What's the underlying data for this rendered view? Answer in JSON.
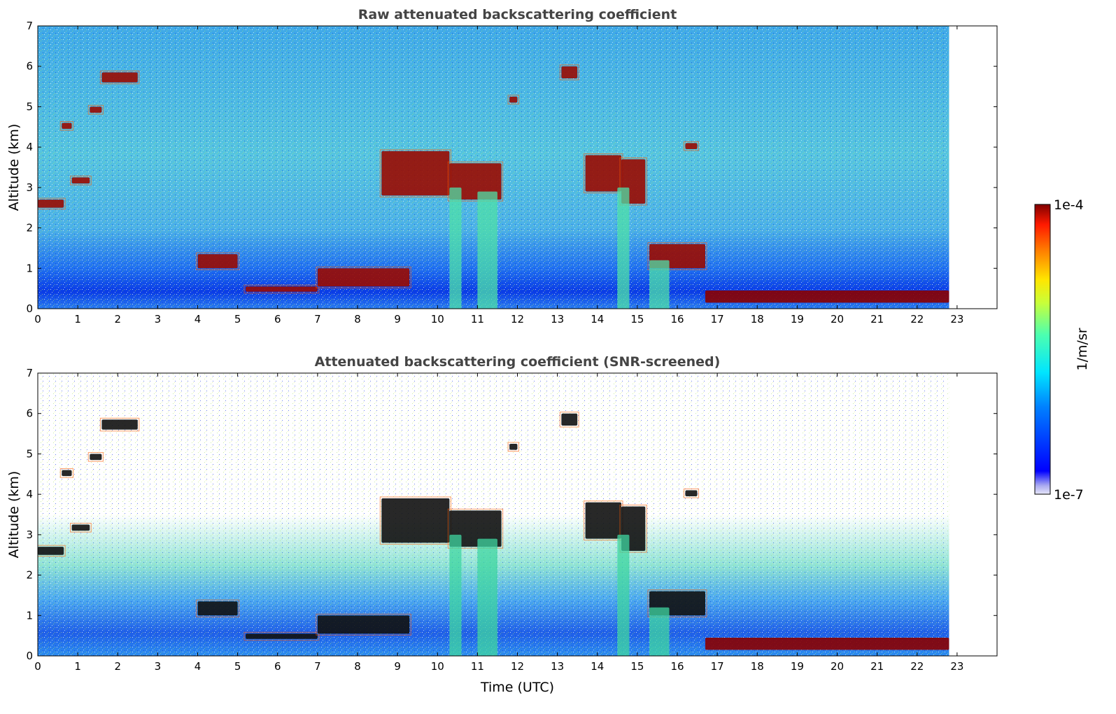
{
  "chart_data": [
    {
      "type": "heatmap",
      "title": "Raw attenuated backscattering coefficient",
      "xlabel": "",
      "ylabel": "Altitude (km)",
      "xlim": [
        0,
        24
      ],
      "ylim": [
        0,
        7
      ],
      "x_ticks": [
        0,
        1,
        2,
        3,
        4,
        5,
        6,
        7,
        8,
        9,
        10,
        11,
        12,
        13,
        14,
        15,
        16,
        17,
        18,
        19,
        20,
        21,
        22,
        23
      ],
      "y_ticks": [
        0,
        1,
        2,
        3,
        4,
        5,
        6,
        7
      ],
      "data_extent_x": [
        0,
        22.8
      ],
      "screened": false,
      "features": [
        {
          "kind": "cloud",
          "x": [
            0.0,
            0.65
          ],
          "y": [
            2.5,
            2.7
          ]
        },
        {
          "kind": "cloud",
          "x": [
            0.6,
            0.85
          ],
          "y": [
            4.45,
            4.6
          ]
        },
        {
          "kind": "cloud",
          "x": [
            0.85,
            1.3
          ],
          "y": [
            3.1,
            3.25
          ]
        },
        {
          "kind": "cloud",
          "x": [
            1.3,
            1.6
          ],
          "y": [
            4.85,
            5.0
          ]
        },
        {
          "kind": "cloud",
          "x": [
            1.6,
            2.5
          ],
          "y": [
            5.6,
            5.85
          ]
        },
        {
          "kind": "cloud",
          "x": [
            4.0,
            5.0
          ],
          "y": [
            1.0,
            1.35
          ]
        },
        {
          "kind": "cloud",
          "x": [
            5.2,
            7.0
          ],
          "y": [
            0.42,
            0.55
          ]
        },
        {
          "kind": "cloud",
          "x": [
            7.0,
            9.3
          ],
          "y": [
            0.55,
            1.0
          ]
        },
        {
          "kind": "cloud",
          "x": [
            8.6,
            10.3
          ],
          "y": [
            2.8,
            3.9
          ]
        },
        {
          "kind": "cloud",
          "x": [
            10.3,
            11.6
          ],
          "y": [
            2.7,
            3.6
          ]
        },
        {
          "kind": "cloud",
          "x": [
            11.8,
            12.0
          ],
          "y": [
            5.1,
            5.25
          ]
        },
        {
          "kind": "cloud",
          "x": [
            13.1,
            13.5
          ],
          "y": [
            5.7,
            6.0
          ]
        },
        {
          "kind": "cloud",
          "x": [
            13.7,
            14.6
          ],
          "y": [
            2.9,
            3.8
          ]
        },
        {
          "kind": "cloud",
          "x": [
            14.6,
            15.2
          ],
          "y": [
            2.6,
            3.7
          ]
        },
        {
          "kind": "cloud",
          "x": [
            15.3,
            16.7
          ],
          "y": [
            1.0,
            1.6
          ]
        },
        {
          "kind": "cloud",
          "x": [
            16.2,
            16.5
          ],
          "y": [
            3.95,
            4.1
          ]
        },
        {
          "kind": "fall_streak",
          "x": [
            10.3,
            10.6
          ],
          "y": [
            0.0,
            3.0
          ]
        },
        {
          "kind": "fall_streak",
          "x": [
            11.0,
            11.5
          ],
          "y": [
            0.0,
            2.9
          ]
        },
        {
          "kind": "fall_streak",
          "x": [
            14.5,
            14.8
          ],
          "y": [
            0.0,
            3.0
          ]
        },
        {
          "kind": "fall_streak",
          "x": [
            15.3,
            15.8
          ],
          "y": [
            0.0,
            1.2
          ]
        },
        {
          "kind": "boundary_layer_top",
          "x": [
            16.7,
            22.8
          ],
          "y": [
            0.15,
            0.45
          ]
        }
      ]
    },
    {
      "type": "heatmap",
      "title": "Attenuated backscattering coefficient (SNR-screened)",
      "xlabel": "Time (UTC)",
      "ylabel": "Altitude (km)",
      "xlim": [
        0,
        24
      ],
      "ylim": [
        0,
        7
      ],
      "x_ticks": [
        0,
        1,
        2,
        3,
        4,
        5,
        6,
        7,
        8,
        9,
        10,
        11,
        12,
        13,
        14,
        15,
        16,
        17,
        18,
        19,
        20,
        21,
        22,
        23
      ],
      "y_ticks": [
        0,
        1,
        2,
        3,
        4,
        5,
        6,
        7
      ],
      "data_extent_x": [
        0,
        22.8
      ],
      "screened": true
    }
  ],
  "colorbar": {
    "label": "1/m/sr",
    "min_label": "1e-7",
    "max_label": "1e-4",
    "vmin": 1e-07,
    "vmax": 0.0001,
    "scale": "log",
    "colormap": "jet",
    "colors": [
      "#00007f",
      "#0000ff",
      "#007fff",
      "#00ffff",
      "#7fff7f",
      "#ffff00",
      "#ff7f00",
      "#ff0000",
      "#7f0000"
    ]
  }
}
